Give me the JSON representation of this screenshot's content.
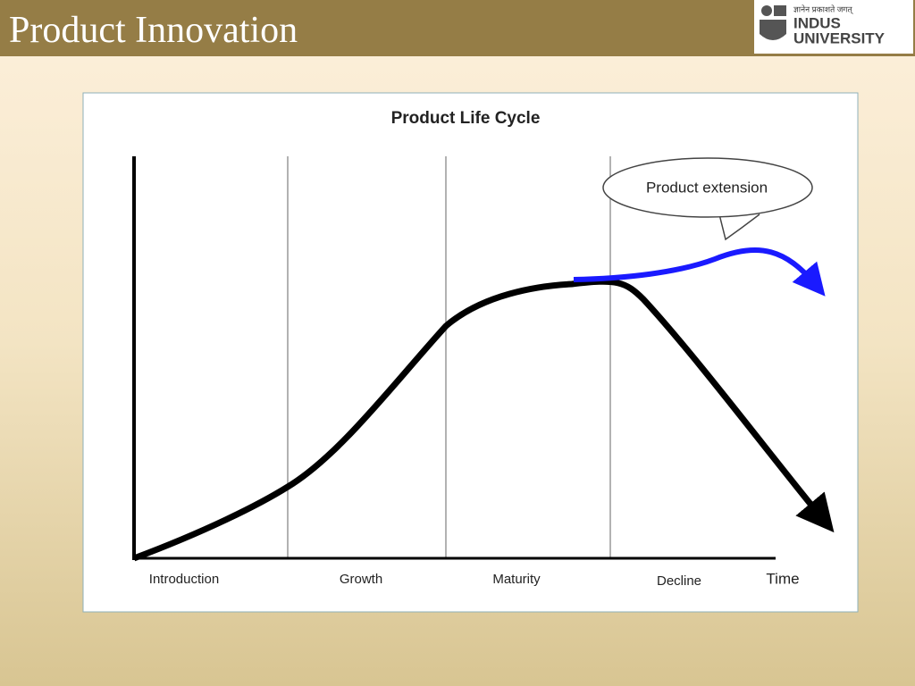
{
  "header": {
    "title": "Product Innovation"
  },
  "logo": {
    "tagline": "ज्ञानेन प्रकाशते जगत्",
    "name_top": "INDUS",
    "name_bottom": "UNIVERSITY"
  },
  "diagram": {
    "title": "Product Life Cycle",
    "callout": "Product extension",
    "stages": [
      "Introduction",
      "Growth",
      "Maturity",
      "Decline"
    ],
    "axis_label": "Time"
  }
}
